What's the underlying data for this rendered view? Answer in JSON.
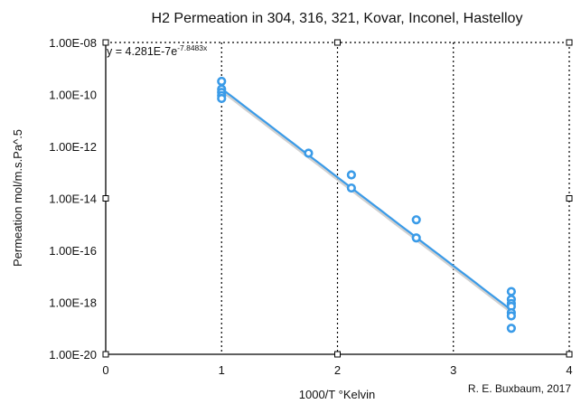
{
  "chart_data": {
    "type": "scatter",
    "title": "H2 Permeation in 304, 316, 321, Kovar, Inconel, Hastelloy",
    "xlabel": "1000/T °Kelvin",
    "ylabel": "Permeation mol/m.s.Pa^.5",
    "credit": "R. E. Buxbaum, 2017",
    "xlim": [
      0,
      4
    ],
    "ylim": [
      1e-20,
      1e-08
    ],
    "y_scale": "log",
    "x_ticks": [
      "0",
      "1",
      "2",
      "3",
      "4"
    ],
    "y_ticks": [
      "1.00E-08",
      "1.00E-10",
      "1.00E-12",
      "1.00E-14",
      "1.00E-16",
      "1.00E-18",
      "1.00E-20"
    ],
    "y_tick_values": [
      1e-08,
      1e-10,
      1e-12,
      1e-14,
      1e-16,
      1e-18,
      1e-20
    ],
    "x_gridlines": [
      1,
      2,
      3
    ],
    "grid_style": "dotted vertical",
    "series": [
      {
        "points": [
          [
            1.0,
            3.2e-10
          ],
          [
            1.0,
            1.6e-10
          ],
          [
            1.0,
            1.2e-10
          ],
          [
            1.0,
            9e-11
          ],
          [
            1.0,
            7e-11
          ],
          [
            1.75,
            5.5e-13
          ],
          [
            2.12,
            8e-14
          ],
          [
            2.12,
            2.5e-14
          ],
          [
            2.68,
            1.5e-15
          ],
          [
            2.68,
            3e-16
          ],
          [
            3.5,
            2.6e-18
          ],
          [
            3.5,
            1.3e-18
          ],
          [
            3.5,
            9e-19
          ],
          [
            3.5,
            7e-19
          ],
          [
            3.5,
            4e-19
          ],
          [
            3.5,
            3e-19
          ],
          [
            3.5,
            1e-19
          ]
        ]
      }
    ],
    "trendline": {
      "type": "exponential",
      "equation_prefix": "y = 4.281E-7e",
      "equation_exponent": "-7.8483x",
      "a": 4.281e-07,
      "b": -7.8483,
      "x_range": [
        1.0,
        3.5
      ]
    },
    "colors": {
      "points": "#3a9be8",
      "trendline": "#3a9be8",
      "trendline_shadow": "#c4c4c4",
      "axes": "#000000",
      "grid": "#000000"
    }
  }
}
